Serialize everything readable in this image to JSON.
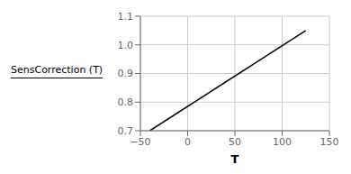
{
  "chart_data": {
    "type": "line",
    "x": [
      -40,
      125
    ],
    "values": [
      0.7,
      1.05
    ],
    "color": "#000000",
    "xlabel": "T",
    "ylabel": "SensCorrection (T)",
    "xlim": [
      -50,
      150
    ],
    "ylim": [
      0.7,
      1.1
    ],
    "xticks": [
      {
        "value": -50,
        "label": "−50"
      },
      0,
      50,
      100,
      150
    ],
    "yticks": [
      0.7,
      0.8,
      0.9,
      {
        "value": 1,
        "label": "1.0"
      },
      1.1
    ],
    "grid": true
  }
}
